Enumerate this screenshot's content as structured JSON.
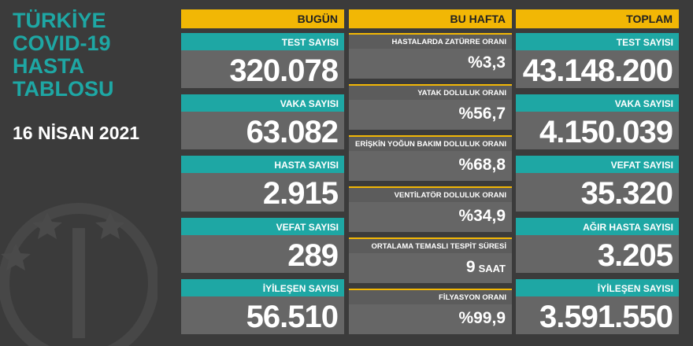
{
  "title": [
    "TÜRKİYE",
    "COVID-19",
    "HASTA",
    "TABLOSU"
  ],
  "date": "16 NİSAN 2021",
  "columns": [
    {
      "header": "BUGÜN",
      "items": [
        {
          "label": "TEST SAYISI",
          "value": "320.078"
        },
        {
          "label": "VAKA SAYISI",
          "value": "63.082"
        },
        {
          "label": "HASTA SAYISI",
          "value": "2.915"
        },
        {
          "label": "VEFAT SAYISI",
          "value": "289"
        },
        {
          "label": "İYİLEŞEN SAYISI",
          "value": "56.510"
        }
      ]
    },
    {
      "header": "BU HAFTA",
      "items": [
        {
          "label": "HASTALARDA ZATÜRRE ORANI",
          "value": "%3,3"
        },
        {
          "label": "YATAK DOLULUK ORANI",
          "value": "%56,7"
        },
        {
          "label": "ERİŞKİN YOĞUN BAKIM DOLULUK ORANI",
          "value": "%68,8"
        },
        {
          "label": "VENTİLATÖR DOLULUK ORANI",
          "value": "%34,9"
        },
        {
          "label": "ORTALAMA TEMASLI TESPİT SÜRESİ",
          "value": "9",
          "unit": "SAAT"
        },
        {
          "label": "FİLYASYON ORANI",
          "value": "%99,9"
        }
      ]
    },
    {
      "header": "TOPLAM",
      "items": [
        {
          "label": "TEST SAYISI",
          "value": "43.148.200"
        },
        {
          "label": "VAKA SAYISI",
          "value": "4.150.039"
        },
        {
          "label": "VEFAT SAYISI",
          "value": "35.320"
        },
        {
          "label": "AĞIR HASTA SAYISI",
          "value": "3.205"
        },
        {
          "label": "İYİLEŞEN SAYISI",
          "value": "3.591.550"
        }
      ]
    }
  ]
}
